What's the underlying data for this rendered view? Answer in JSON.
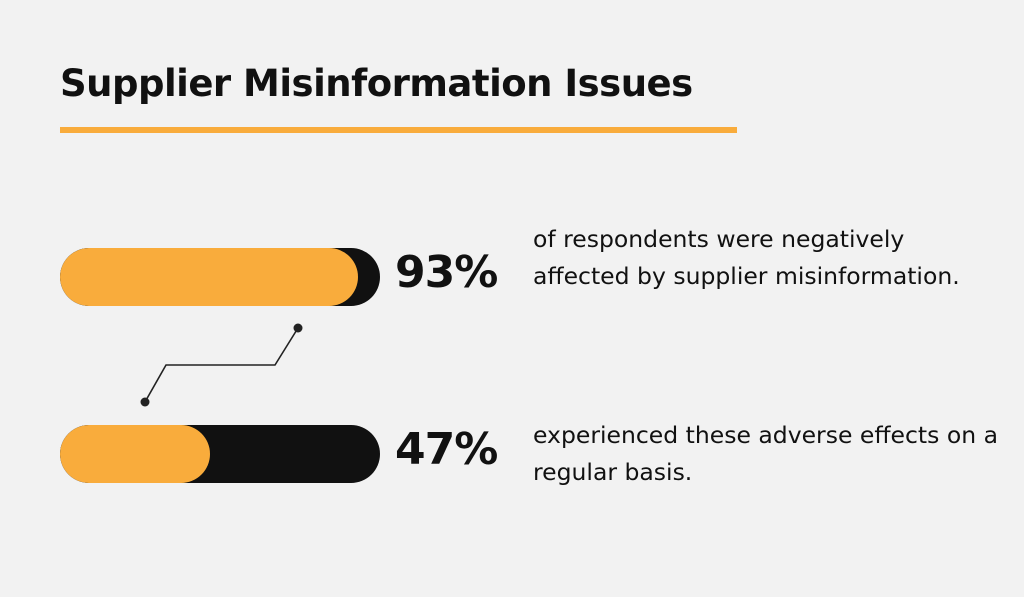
{
  "chart_data": {
    "type": "bar",
    "title": "Supplier Misinformation Issues",
    "orientation": "horizontal",
    "range": [
      0,
      100
    ],
    "series": [
      {
        "value": 93,
        "label": "93%",
        "description": "of respondents were negatively affected by supplier misinformation."
      },
      {
        "value": 47,
        "label": "47%",
        "description": "experienced these adverse effects on a regular basis."
      }
    ]
  },
  "colors": {
    "accent": "#f9ac3c",
    "track": "#111111",
    "background": "#f2f2f2",
    "text": "#111111"
  }
}
